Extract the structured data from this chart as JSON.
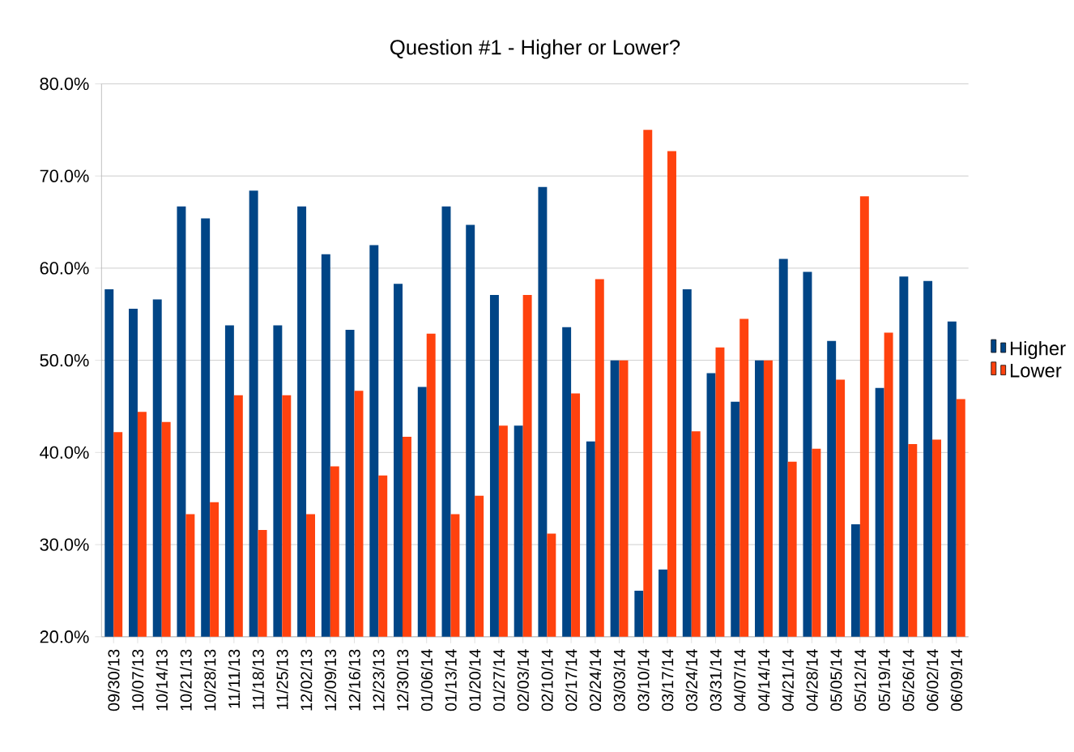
{
  "chart_data": {
    "type": "bar",
    "title": "Question #1 - Higher or Lower?",
    "categories": [
      "09/30/13",
      "10/07/13",
      "10/14/13",
      "10/21/13",
      "10/28/13",
      "11/11/13",
      "11/18/13",
      "11/25/13",
      "12/02/13",
      "12/09/13",
      "12/16/13",
      "12/23/13",
      "12/30/13",
      "01/06/14",
      "01/13/14",
      "01/20/14",
      "01/27/14",
      "02/03/14",
      "02/10/14",
      "02/17/14",
      "02/24/14",
      "03/03/14",
      "03/10/14",
      "03/17/14",
      "03/24/14",
      "03/31/14",
      "04/07/14",
      "04/14/14",
      "04/21/14",
      "04/28/14",
      "05/05/14",
      "05/12/14",
      "05/19/14",
      "05/26/14",
      "06/02/14",
      "06/09/14"
    ],
    "series": [
      {
        "name": "Higher",
        "color": "#004586",
        "values": [
          57.7,
          55.6,
          56.6,
          66.7,
          65.4,
          53.8,
          68.4,
          53.8,
          66.7,
          61.5,
          53.3,
          62.5,
          58.3,
          47.1,
          66.7,
          64.7,
          57.1,
          42.9,
          68.8,
          53.6,
          41.2,
          50,
          25,
          27.3,
          57.7,
          48.6,
          45.5,
          50,
          61,
          59.6,
          52.1,
          32.2,
          47,
          59.1,
          58.6,
          54.2
        ]
      },
      {
        "name": "Lower",
        "color": "#ff420e",
        "values": [
          42.2,
          44.4,
          43.3,
          33.3,
          34.6,
          46.2,
          31.6,
          46.2,
          33.3,
          38.5,
          46.7,
          37.5,
          41.7,
          52.9,
          33.3,
          35.3,
          42.9,
          57.1,
          31.2,
          46.4,
          58.8,
          50,
          75,
          72.7,
          42.3,
          51.4,
          54.5,
          50,
          39,
          40.4,
          47.9,
          67.8,
          53,
          40.9,
          41.4,
          45.8
        ]
      }
    ],
    "ylim": [
      20,
      80
    ],
    "yticks": [
      {
        "value": 20,
        "label": "20.0%"
      },
      {
        "value": 30,
        "label": "30.0%"
      },
      {
        "value": 40,
        "label": "40.0%"
      },
      {
        "value": 50,
        "label": "50.0%"
      },
      {
        "value": 60,
        "label": "60.0%"
      },
      {
        "value": 70,
        "label": "70.0%"
      },
      {
        "value": 80,
        "label": "80.0%"
      }
    ],
    "grid": "y",
    "legend": "right"
  }
}
